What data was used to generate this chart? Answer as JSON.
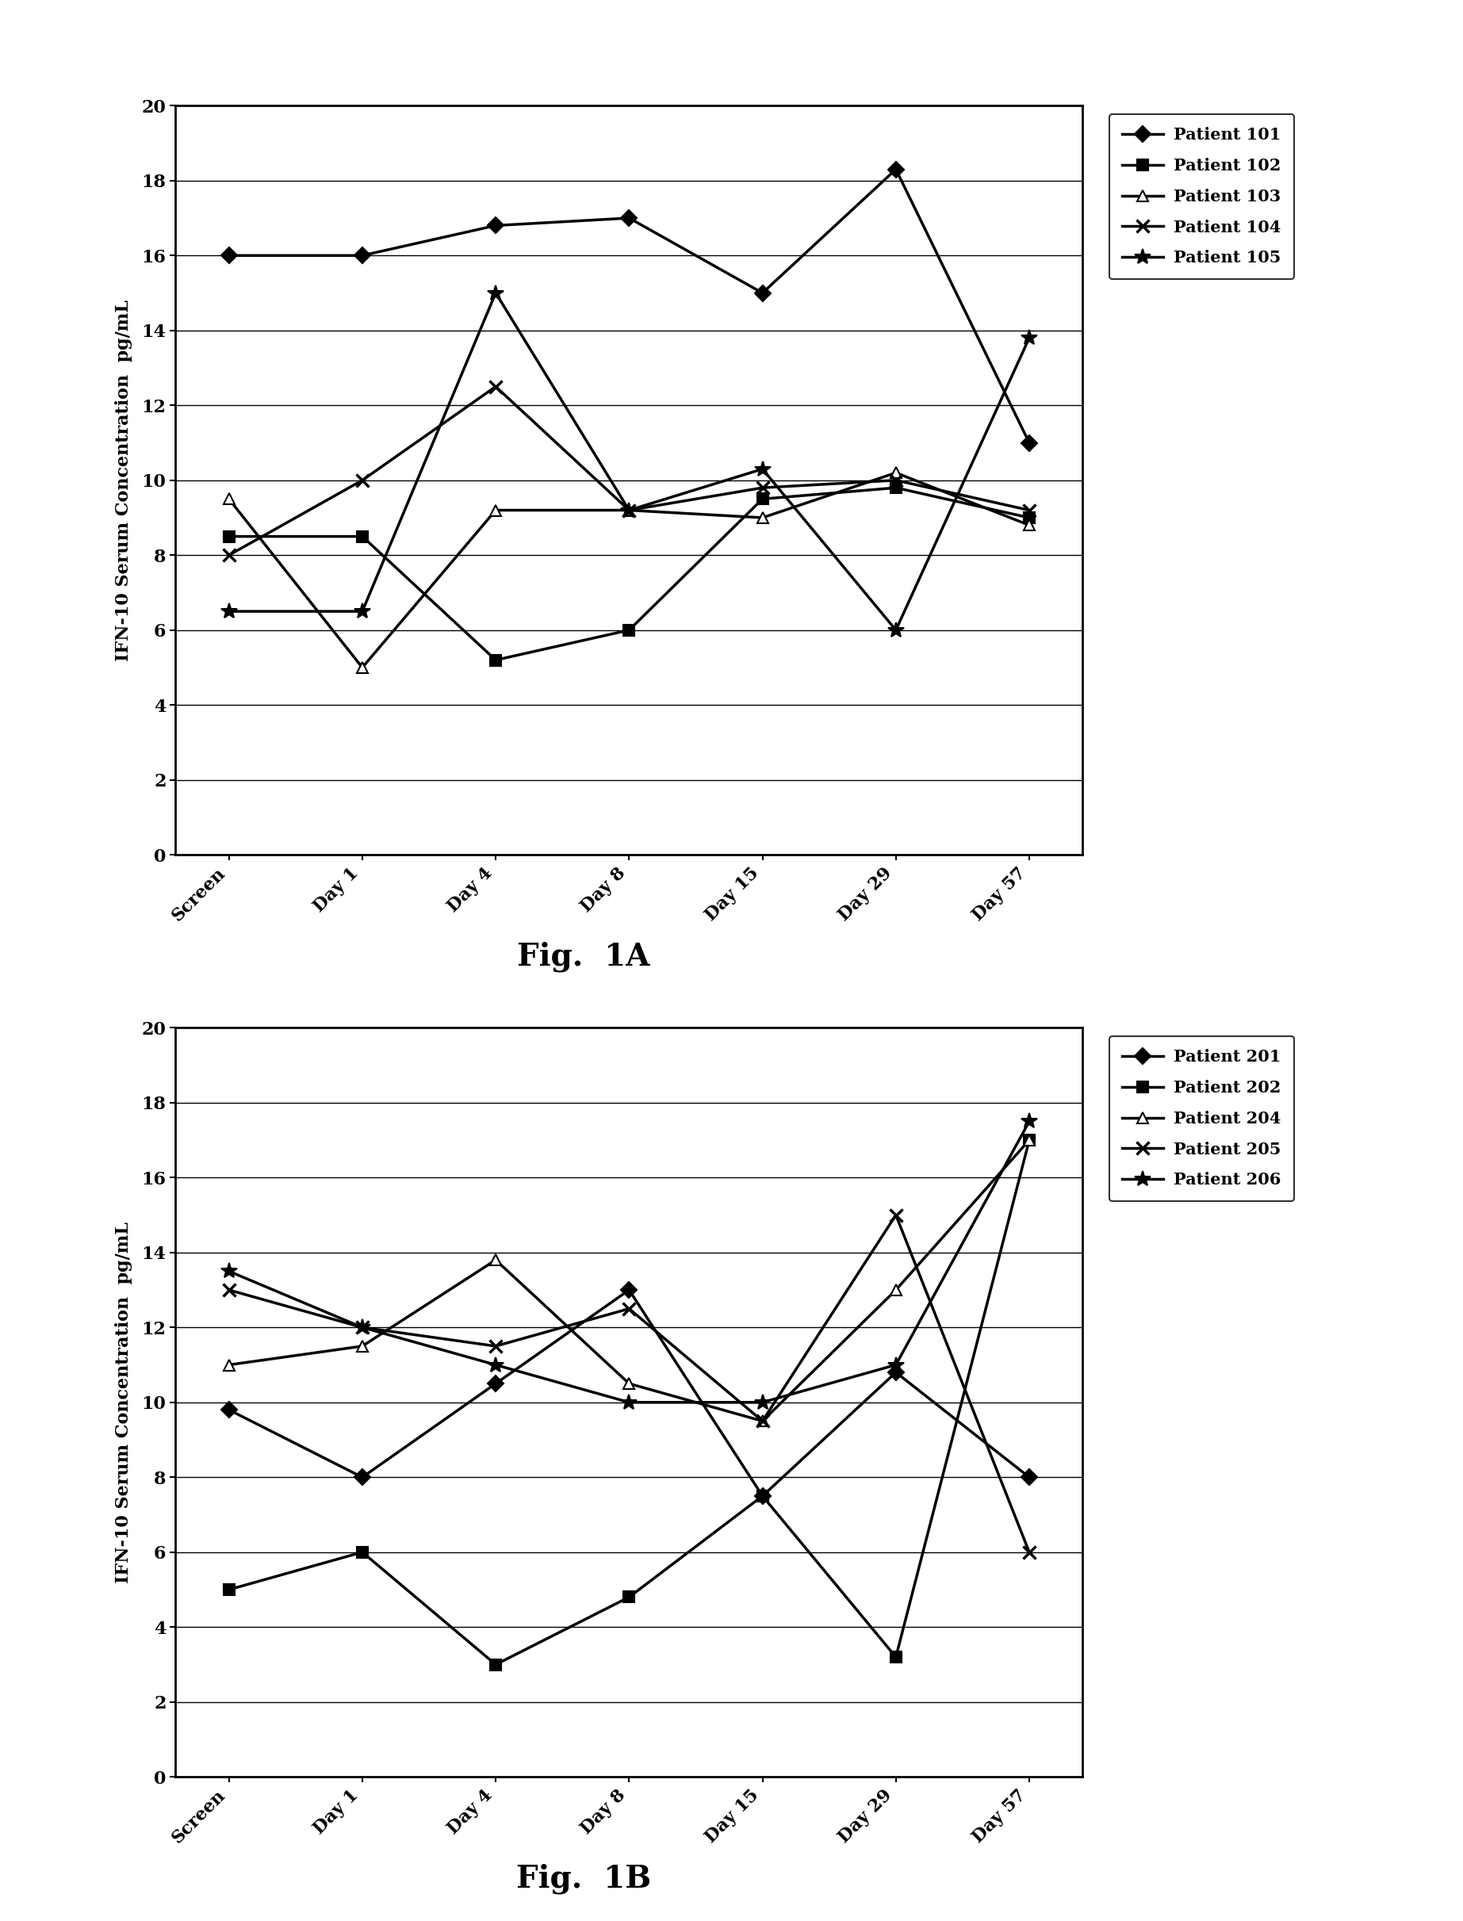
{
  "x_labels": [
    "Screen",
    "Day 1",
    "Day 4",
    "Day 8",
    "Day 15",
    "Day 29",
    "Day 57"
  ],
  "fig1A": {
    "title": "Fig.  1A",
    "ylabel": "IFN-10 Serum Concentration  pg/mL",
    "ylim": [
      0,
      20
    ],
    "yticks": [
      0,
      2,
      4,
      6,
      8,
      10,
      12,
      14,
      16,
      18,
      20
    ],
    "series": [
      {
        "label": "Patient 101",
        "values": [
          16.0,
          16.0,
          16.8,
          17.0,
          15.0,
          18.3,
          11.0
        ],
        "marker": "D",
        "linestyle": "-",
        "color": "#000000",
        "markersize": 10,
        "linewidth": 2.5,
        "markerfacecolor": "#000000"
      },
      {
        "label": "Patient 102",
        "values": [
          8.5,
          8.5,
          5.2,
          6.0,
          9.5,
          9.8,
          9.0
        ],
        "marker": "s",
        "linestyle": "-",
        "color": "#000000",
        "markersize": 10,
        "linewidth": 2.5,
        "markerfacecolor": "#000000"
      },
      {
        "label": "Patient 103",
        "values": [
          9.5,
          5.0,
          9.2,
          9.2,
          9.0,
          10.2,
          8.8
        ],
        "marker": "^",
        "linestyle": "-",
        "color": "#000000",
        "markersize": 10,
        "linewidth": 2.5,
        "markerfacecolor": "white"
      },
      {
        "label": "Patient 104",
        "values": [
          8.0,
          10.0,
          12.5,
          9.2,
          9.8,
          10.0,
          9.2
        ],
        "marker": "x",
        "linestyle": "-",
        "color": "#000000",
        "markersize": 12,
        "linewidth": 2.5,
        "markerfacecolor": "#000000",
        "markeredgewidth": 2.5
      },
      {
        "label": "Patient 105",
        "values": [
          6.5,
          6.5,
          15.0,
          9.2,
          10.3,
          6.0,
          13.8
        ],
        "marker": "*",
        "linestyle": "-",
        "color": "#000000",
        "markersize": 15,
        "linewidth": 2.5,
        "markerfacecolor": "#000000"
      }
    ]
  },
  "fig1B": {
    "title": "Fig.  1B",
    "ylabel": "IFN-10 Serum Concentration  pg/mL",
    "ylim": [
      0,
      20
    ],
    "yticks": [
      0,
      2,
      4,
      6,
      8,
      10,
      12,
      14,
      16,
      18,
      20
    ],
    "series": [
      {
        "label": "Patient 201",
        "values": [
          9.8,
          8.0,
          10.5,
          13.0,
          7.5,
          10.8,
          8.0
        ],
        "marker": "D",
        "linestyle": "-",
        "color": "#000000",
        "markersize": 10,
        "linewidth": 2.5,
        "markerfacecolor": "#000000"
      },
      {
        "label": "Patient 202",
        "values": [
          5.0,
          6.0,
          3.0,
          4.8,
          7.5,
          3.2,
          17.0
        ],
        "marker": "s",
        "linestyle": "-",
        "color": "#000000",
        "markersize": 10,
        "linewidth": 2.5,
        "markerfacecolor": "#000000"
      },
      {
        "label": "Patient 204",
        "values": [
          11.0,
          11.5,
          13.8,
          10.5,
          9.5,
          13.0,
          17.0
        ],
        "marker": "^",
        "linestyle": "-",
        "color": "#000000",
        "markersize": 10,
        "linewidth": 2.5,
        "markerfacecolor": "white"
      },
      {
        "label": "Patient 205",
        "values": [
          13.0,
          12.0,
          11.5,
          12.5,
          9.5,
          15.0,
          6.0
        ],
        "marker": "x",
        "linestyle": "-",
        "color": "#000000",
        "markersize": 12,
        "linewidth": 2.5,
        "markerfacecolor": "#000000",
        "markeredgewidth": 2.5
      },
      {
        "label": "Patient 206",
        "values": [
          13.5,
          12.0,
          11.0,
          10.0,
          10.0,
          11.0,
          17.5
        ],
        "marker": "*",
        "linestyle": "-",
        "color": "#000000",
        "markersize": 15,
        "linewidth": 2.5,
        "markerfacecolor": "#000000"
      }
    ]
  },
  "background_color": "#ffffff",
  "title_fontsize": 28,
  "label_fontsize": 16,
  "tick_fontsize": 16,
  "legend_fontsize": 15
}
